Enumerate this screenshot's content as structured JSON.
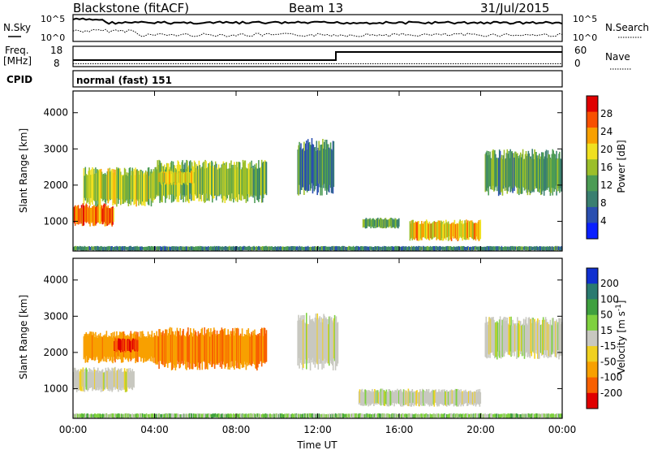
{
  "header": {
    "radar": "Blackstone (fitACF)",
    "beam": "Beam 13",
    "date": "31/Jul/2015"
  },
  "noise_panel": {
    "left_label": "N.Sky",
    "right_label": "N.Search",
    "top_tick": "10^5",
    "bottom_tick": "10^0"
  },
  "freq_panel": {
    "left_label_top": "Freq.",
    "left_label_unit": "[MHz]",
    "left_ticks": [
      "18",
      "8"
    ],
    "right_label": "Nave",
    "right_ticks": [
      "60",
      "0"
    ],
    "freq_mhz": [
      10.5,
      10.5,
      10.5
    ],
    "nave": [
      0,
      0,
      0
    ]
  },
  "cpid": {
    "label": "CPID",
    "value": "normal (fast) 151"
  },
  "x_axis": {
    "ticks": [
      "00:00",
      "04:00",
      "08:00",
      "12:00",
      "16:00",
      "20:00",
      "00:00"
    ],
    "label": "Time UT"
  },
  "chart_data": [
    {
      "type": "heatmap",
      "name": "power",
      "ylabel": "Slant Range [km]",
      "xlabel": "Time UT",
      "x_range_hours": [
        0,
        24
      ],
      "ylim_km": [
        180,
        4600
      ],
      "y_ticks": [
        "1000",
        "2000",
        "3000",
        "4000"
      ],
      "colorbar": {
        "label": "Power [dB]",
        "ticks": [
          "4",
          "8",
          "12",
          "16",
          "20",
          "24",
          "28"
        ],
        "range": [
          0,
          30
        ],
        "colors": [
          "#0a20ff",
          "#2a4fb0",
          "#3a7f70",
          "#4c9c54",
          "#9cbf2a",
          "#f0e020",
          "#f8a000",
          "#f85000",
          "#e00000"
        ]
      },
      "echo_regions": [
        {
          "t0": 0.0,
          "t1": 2.0,
          "r0": 850,
          "r1": 1500,
          "level": 24
        },
        {
          "t0": 0.5,
          "t1": 4.0,
          "r0": 1400,
          "r1": 2500,
          "level": 16
        },
        {
          "t0": 4.0,
          "t1": 9.5,
          "r0": 1500,
          "r1": 2700,
          "level": 14
        },
        {
          "t0": 4.2,
          "t1": 6.0,
          "r0": 2000,
          "r1": 2400,
          "level": 18
        },
        {
          "t0": 11.0,
          "t1": 12.8,
          "r0": 1700,
          "r1": 3300,
          "level": 9
        },
        {
          "t0": 14.2,
          "t1": 16.0,
          "r0": 800,
          "r1": 1100,
          "level": 12
        },
        {
          "t0": 16.5,
          "t1": 20.0,
          "r0": 450,
          "r1": 1050,
          "level": 20
        },
        {
          "t0": 20.2,
          "t1": 24.0,
          "r0": 1700,
          "r1": 3000,
          "level": 11
        },
        {
          "t0": 0.0,
          "t1": 24.0,
          "r0": 180,
          "r1": 320,
          "level": 9
        }
      ]
    },
    {
      "type": "heatmap",
      "name": "velocity",
      "ylabel": "Slant Range [km]",
      "xlabel": "Time UT",
      "x_range_hours": [
        0,
        24
      ],
      "ylim_km": [
        180,
        4600
      ],
      "y_ticks": [
        "1000",
        "2000",
        "3000",
        "4000"
      ],
      "colorbar": {
        "label": "Velocity [m s^-1]",
        "ticks": [
          "200",
          "100",
          "50",
          "15",
          "-15",
          "-50",
          "-100",
          "-200"
        ],
        "colors": [
          "#1030d0",
          "#2a7a70",
          "#3fa03f",
          "#7fd13f",
          "#c8c8c0",
          "#f0d020",
          "#f8a000",
          "#f86000",
          "#e00000"
        ]
      },
      "echo_regions": [
        {
          "t0": 0.0,
          "t1": 3.0,
          "r0": 900,
          "r1": 1600,
          "vel": 0
        },
        {
          "t0": 0.5,
          "t1": 4.0,
          "r0": 1700,
          "r1": 2600,
          "vel": -60
        },
        {
          "t0": 2.0,
          "t1": 3.2,
          "r0": 2000,
          "r1": 2400,
          "vel": -150
        },
        {
          "t0": 4.0,
          "t1": 9.5,
          "r0": 1500,
          "r1": 2700,
          "vel": -70
        },
        {
          "t0": 11.0,
          "t1": 13.0,
          "r0": 1500,
          "r1": 3100,
          "vel": 0
        },
        {
          "t0": 14.0,
          "t1": 20.0,
          "r0": 500,
          "r1": 1000,
          "vel": 0
        },
        {
          "t0": 20.2,
          "t1": 24.0,
          "r0": 1800,
          "r1": 3000,
          "vel": 0
        },
        {
          "t0": 0.0,
          "t1": 24.0,
          "r0": 180,
          "r1": 320,
          "vel": 20
        }
      ]
    }
  ]
}
